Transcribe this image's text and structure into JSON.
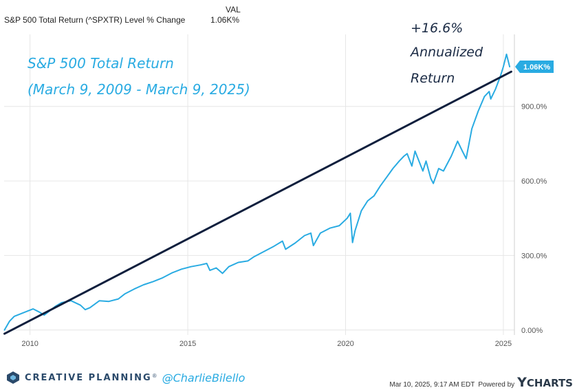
{
  "header": {
    "series_label": "S&P 500 Total Return (^SPXTR) Level % Change",
    "value_header": "VAL",
    "value": "1.06K%"
  },
  "chart_data": {
    "type": "line",
    "title": "S&P 500 Total Return",
    "subtitle": "(March 9, 2009 - March 9, 2025)",
    "xlabel": "",
    "ylabel": "",
    "xlim": [
      2009.18,
      2025.35
    ],
    "ylim": [
      -20,
      1190
    ],
    "x_ticks": [
      2010,
      2015,
      2020,
      2025
    ],
    "x_tick_labels": [
      "2010",
      "2015",
      "2020",
      "2025"
    ],
    "y_ticks": [
      0,
      300,
      600,
      900
    ],
    "y_tick_labels": [
      "0.00%",
      "300.0%",
      "600.0%",
      "900.0%"
    ],
    "grid": true,
    "current_value_label": "1.06K%",
    "current_value": 1060,
    "annotation": {
      "line1": "+16.6%",
      "line2": "Annualized",
      "line3": "Return"
    },
    "series": [
      {
        "name": "S&P 500 Total Return (^SPXTR) Level % Change",
        "color": "#29abe2",
        "x": [
          2009.19,
          2009.35,
          2009.5,
          2009.7,
          2009.9,
          2010.1,
          2010.3,
          2010.45,
          2010.6,
          2010.8,
          2011.0,
          2011.3,
          2011.6,
          2011.75,
          2011.9,
          2012.2,
          2012.5,
          2012.8,
          2013.0,
          2013.3,
          2013.6,
          2013.9,
          2014.2,
          2014.5,
          2014.8,
          2015.1,
          2015.4,
          2015.6,
          2015.7,
          2015.9,
          2016.1,
          2016.3,
          2016.6,
          2016.9,
          2017.1,
          2017.4,
          2017.7,
          2018.0,
          2018.1,
          2018.4,
          2018.7,
          2018.9,
          2018.98,
          2019.2,
          2019.5,
          2019.8,
          2020.05,
          2020.15,
          2020.22,
          2020.3,
          2020.5,
          2020.7,
          2020.9,
          2021.1,
          2021.3,
          2021.5,
          2021.7,
          2021.85,
          2021.95,
          2022.1,
          2022.2,
          2022.45,
          2022.55,
          2022.7,
          2022.78,
          2022.95,
          2023.1,
          2023.35,
          2023.55,
          2023.7,
          2023.82,
          2024.0,
          2024.2,
          2024.4,
          2024.55,
          2024.6,
          2024.75,
          2024.9,
          2025.0,
          2025.1,
          2025.2
        ],
        "y": [
          0,
          35,
          55,
          65,
          75,
          85,
          72,
          60,
          75,
          95,
          110,
          118,
          100,
          82,
          90,
          118,
          115,
          125,
          145,
          165,
          182,
          195,
          210,
          230,
          245,
          255,
          262,
          268,
          240,
          250,
          228,
          255,
          272,
          278,
          295,
          315,
          335,
          358,
          325,
          350,
          380,
          390,
          340,
          390,
          410,
          420,
          450,
          470,
          352,
          400,
          480,
          520,
          540,
          580,
          615,
          650,
          680,
          700,
          710,
          660,
          720,
          640,
          680,
          610,
          590,
          650,
          640,
          700,
          760,
          720,
          690,
          810,
          880,
          940,
          960,
          930,
          970,
          1020,
          1060,
          1110,
          1060
        ]
      },
      {
        "name": "+16.6% Annualized Return",
        "color": "#0f1f3d",
        "x": [
          2009.19,
          2025.25
        ],
        "y": [
          -15,
          1040
        ]
      }
    ]
  },
  "footer": {
    "brand": "CREATIVE PLANNING",
    "brand_mark": "®",
    "handle": "@CharlieBilello",
    "timestamp": "Mar 10, 2025, 9:17 AM EDT",
    "powered_by": "Powered by",
    "ycharts_y": "Y",
    "ycharts_rest": "CHARTS"
  },
  "colors": {
    "series": "#29abe2",
    "trend": "#0f1f3d",
    "grid": "#e6e6e6",
    "axis_text": "#555555"
  }
}
